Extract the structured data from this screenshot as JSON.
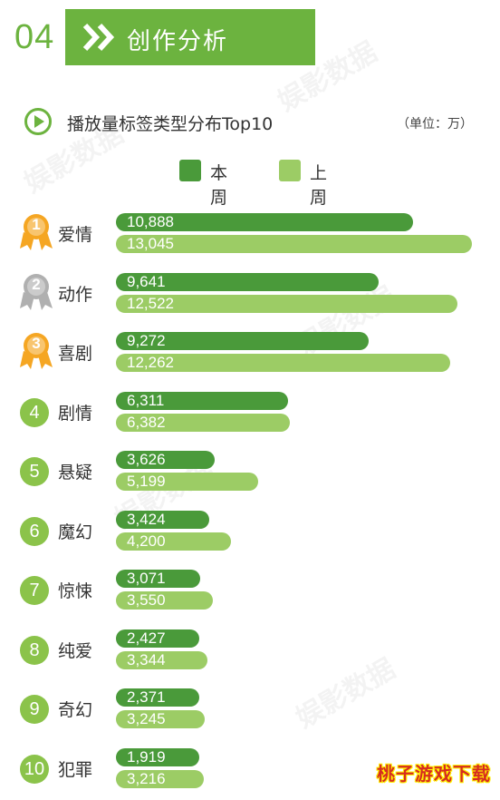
{
  "header": {
    "section_number": "04",
    "title": "创作分析"
  },
  "subheader": {
    "title": "播放量标签类型分布Top10",
    "unit": "（单位：万）"
  },
  "legend": [
    {
      "label": "本周",
      "color": "#4a9a3a"
    },
    {
      "label": "上周",
      "color": "#9ccc65"
    }
  ],
  "watermark": "娱影数据",
  "corner_mark": "桃子游戏下载",
  "chart_data": {
    "type": "bar",
    "title": "播放量标签类型分布Top10",
    "unit": "（单位：万）",
    "categories": [
      "爱情",
      "动作",
      "喜剧",
      "剧情",
      "悬疑",
      "魔幻",
      "惊悚",
      "纯爱",
      "奇幻",
      "犯罪"
    ],
    "ranks": [
      "1",
      "2",
      "3",
      "4",
      "5",
      "6",
      "7",
      "8",
      "9",
      "10"
    ],
    "series": [
      {
        "name": "本周",
        "values": [
          10888,
          9641,
          9272,
          6311,
          3626,
          3424,
          3071,
          2427,
          2371,
          1919
        ],
        "labels": [
          "10,888",
          "9,641",
          "9,272",
          "6,311",
          "3,626",
          "3,424",
          "3,071",
          "2,427",
          "2,371",
          "1,919"
        ]
      },
      {
        "name": "上周",
        "values": [
          13045,
          12522,
          12262,
          6382,
          5199,
          4200,
          3550,
          3344,
          3245,
          3216
        ],
        "labels": [
          "13,045",
          "12,522",
          "12,262",
          "6,382",
          "5,199",
          "4,200",
          "3,550",
          "3,344",
          "3,245",
          "3,216"
        ]
      }
    ],
    "colors": {
      "current": "#4a9a3a",
      "previous": "#9ccc65",
      "rank_circle": "#8bc34a"
    },
    "medal_colors": [
      "#f5a623",
      "#b0b0b0",
      "#f5a623"
    ],
    "xlim": [
      0,
      13045
    ],
    "legend_position": "top-center",
    "grid": false
  }
}
